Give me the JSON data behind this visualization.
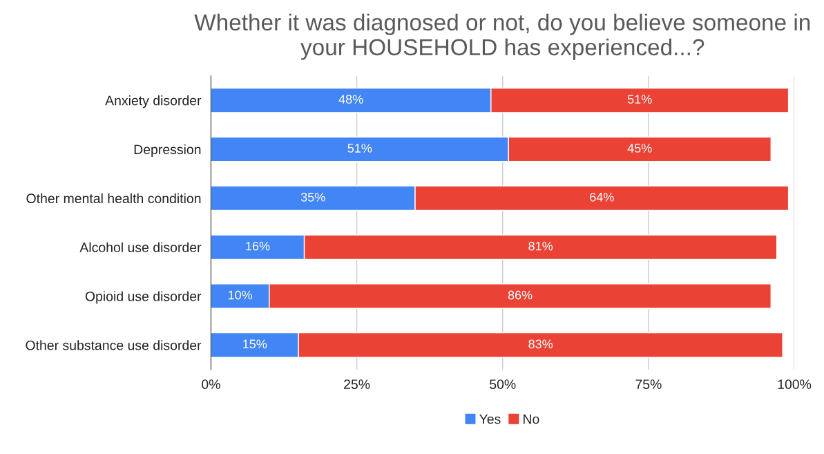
{
  "chart_data": {
    "type": "bar",
    "orientation": "horizontal",
    "stacked": true,
    "title": "Whether it was diagnosed or not, do you believe someone in your HOUSEHOLD has experienced...?",
    "categories": [
      "Anxiety disorder",
      "Depression",
      "Other mental health condition",
      "Alcohol use disorder",
      "Opioid use disorder",
      "Other substance use disorder"
    ],
    "series": [
      {
        "name": "Yes",
        "color": "#4285f4",
        "values": [
          48,
          51,
          35,
          16,
          10,
          15
        ],
        "value_labels": [
          "48%",
          "51%",
          "35%",
          "16%",
          "10%",
          "15%"
        ]
      },
      {
        "name": "No",
        "color": "#ea4335",
        "values": [
          51,
          45,
          64,
          81,
          86,
          83
        ],
        "value_labels": [
          "51%",
          "45%",
          "64%",
          "81%",
          "86%",
          "83%"
        ]
      }
    ],
    "xlim": [
      0,
      100
    ],
    "xticks": [
      {
        "value": 0,
        "label": "0%"
      },
      {
        "value": 25,
        "label": "25%"
      },
      {
        "value": 50,
        "label": "50%"
      },
      {
        "value": 75,
        "label": "75%"
      },
      {
        "value": 100,
        "label": "100%"
      }
    ],
    "grid": "x",
    "legend": "bottom"
  }
}
